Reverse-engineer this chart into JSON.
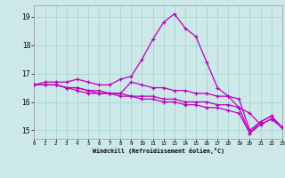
{
  "xlabel": "Windchill (Refroidissement éolien,°C)",
  "bg_color": "#cce8e8",
  "grid_color": "#aad4d4",
  "line_color": "#bb00bb",
  "xmin": 0,
  "xmax": 23,
  "ymin": 14.7,
  "ymax": 19.4,
  "yticks": [
    15,
    16,
    17,
    18,
    19
  ],
  "xtick_labels": [
    "0",
    "1",
    "2",
    "3",
    "4",
    "5",
    "6",
    "7",
    "8",
    "9",
    "10",
    "11",
    "12",
    "13",
    "14",
    "15",
    "16",
    "17",
    "18",
    "19",
    "20",
    "21",
    "22",
    "23"
  ],
  "series": [
    {
      "x": [
        0,
        1,
        2,
        3,
        4,
        5,
        6,
        7,
        8,
        9,
        10,
        11,
        12,
        13,
        14,
        15,
        16,
        17,
        18,
        19,
        20,
        21,
        22,
        23
      ],
      "y": [
        16.6,
        16.7,
        16.7,
        16.7,
        16.8,
        16.7,
        16.6,
        16.6,
        16.8,
        16.9,
        17.5,
        18.2,
        18.8,
        19.1,
        18.6,
        18.3,
        17.4,
        16.5,
        16.2,
        15.8,
        15.6,
        15.2,
        15.4,
        15.1
      ]
    },
    {
      "x": [
        0,
        1,
        2,
        3,
        4,
        5,
        6,
        7,
        8,
        9,
        10,
        11,
        12,
        13,
        14,
        15,
        16,
        17,
        18,
        19,
        20,
        21,
        22,
        23
      ],
      "y": [
        16.6,
        16.6,
        16.6,
        16.5,
        16.5,
        16.4,
        16.4,
        16.3,
        16.3,
        16.7,
        16.6,
        16.5,
        16.5,
        16.4,
        16.4,
        16.3,
        16.3,
        16.2,
        16.2,
        16.1,
        15.0,
        15.3,
        15.5,
        15.1
      ]
    },
    {
      "x": [
        0,
        1,
        2,
        3,
        4,
        5,
        6,
        7,
        8,
        9,
        10,
        11,
        12,
        13,
        14,
        15,
        16,
        17,
        18,
        19,
        20,
        21,
        22,
        23
      ],
      "y": [
        16.6,
        16.6,
        16.6,
        16.5,
        16.5,
        16.4,
        16.3,
        16.3,
        16.3,
        16.2,
        16.2,
        16.2,
        16.1,
        16.1,
        16.0,
        16.0,
        16.0,
        15.9,
        15.9,
        15.8,
        14.9,
        15.3,
        15.5,
        15.1
      ]
    },
    {
      "x": [
        0,
        1,
        2,
        3,
        4,
        5,
        6,
        7,
        8,
        9,
        10,
        11,
        12,
        13,
        14,
        15,
        16,
        17,
        18,
        19,
        20,
        21,
        22,
        23
      ],
      "y": [
        16.6,
        16.6,
        16.6,
        16.5,
        16.4,
        16.3,
        16.3,
        16.3,
        16.2,
        16.2,
        16.1,
        16.1,
        16.0,
        16.0,
        15.9,
        15.9,
        15.8,
        15.8,
        15.7,
        15.6,
        14.9,
        15.2,
        15.4,
        15.1
      ]
    }
  ]
}
